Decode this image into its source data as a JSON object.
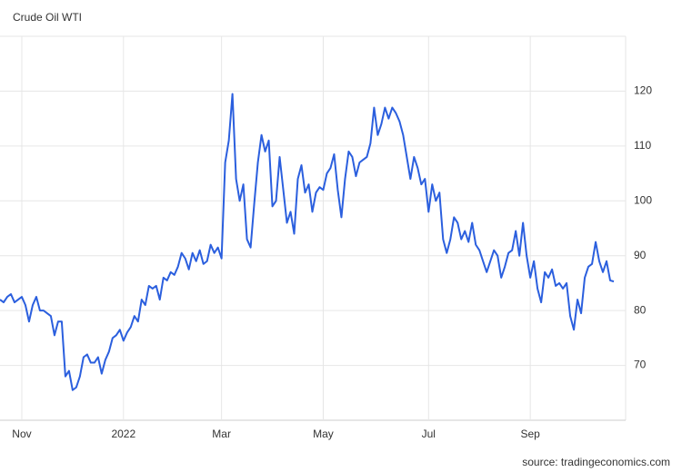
{
  "chart_data": {
    "type": "line",
    "title": "Crude Oil WTI",
    "source": "source: tradingeconomics.com",
    "categories": [
      null,
      null,
      null,
      null,
      null,
      null,
      "Nov",
      null,
      null,
      null,
      null,
      null,
      null,
      null,
      null,
      null,
      null,
      null,
      null,
      null,
      null,
      null,
      null,
      null,
      null,
      null,
      null,
      null,
      null,
      null,
      null,
      null,
      null,
      null,
      "2022",
      null,
      null,
      null,
      null,
      null,
      null,
      null,
      null,
      null,
      null,
      null,
      null,
      null,
      null,
      null,
      null,
      null,
      null,
      null,
      null,
      null,
      null,
      null,
      null,
      null,
      null,
      "Mar",
      null,
      null,
      null,
      null,
      null,
      null,
      null,
      null,
      null,
      null,
      null,
      null,
      null,
      null,
      null,
      null,
      null,
      null,
      null,
      null,
      null,
      null,
      null,
      null,
      null,
      null,
      null,
      "May",
      null,
      null,
      null,
      null,
      null,
      null,
      null,
      null,
      null,
      null,
      null,
      null,
      null,
      null,
      null,
      null,
      null,
      null,
      null,
      null,
      null,
      null,
      null,
      null,
      null,
      null,
      null,
      null,
      "Jul",
      null,
      null,
      null,
      null,
      null,
      null,
      null,
      null,
      null,
      null,
      null,
      null,
      null,
      null,
      null,
      null,
      null,
      null,
      null,
      null,
      null,
      null,
      null,
      null,
      null,
      null,
      null,
      "Sep",
      null,
      null,
      null,
      null,
      null,
      null,
      null,
      null,
      null,
      null,
      null,
      null,
      null,
      null,
      null,
      null,
      null,
      null,
      null,
      null,
      null,
      null,
      null
    ],
    "values": [
      82,
      81.5,
      82.5,
      83,
      81.5,
      82,
      82.5,
      81,
      78,
      81,
      82.5,
      80,
      80,
      79.5,
      79,
      75.5,
      78,
      78,
      68,
      69,
      65.5,
      66,
      68,
      71.5,
      72,
      70.5,
      70.5,
      71.5,
      68.5,
      71,
      72.5,
      75,
      75.5,
      76.5,
      74.5,
      76,
      77,
      79,
      78,
      82,
      81,
      84.5,
      84,
      84.5,
      82,
      86,
      85.5,
      87,
      86.5,
      88,
      90.5,
      89.5,
      87.5,
      90.5,
      89,
      91,
      88.5,
      89,
      92,
      90.5,
      91.5,
      89.5,
      107,
      111,
      119.5,
      104,
      100,
      103,
      93,
      91.5,
      99.5,
      107,
      112,
      109,
      111,
      99,
      100,
      108,
      102,
      96,
      98,
      94,
      104,
      106.5,
      101.5,
      103,
      98,
      101.5,
      102.5,
      102,
      105,
      106,
      108.5,
      102,
      97,
      104,
      109,
      108,
      104.5,
      107,
      107.5,
      108,
      110.5,
      117,
      112,
      114,
      117,
      115,
      117,
      116,
      114.5,
      112,
      108,
      104,
      108,
      106,
      103,
      104,
      98,
      103,
      100,
      101.5,
      93,
      90.5,
      93,
      97,
      96,
      93,
      94.5,
      92.5,
      96,
      92,
      91,
      89,
      87,
      89,
      91,
      90,
      86,
      88,
      90.5,
      91,
      94.5,
      90,
      96,
      90,
      86,
      89,
      84,
      81.5,
      87,
      86,
      87.5,
      84.5,
      85,
      84,
      85,
      79,
      76.5,
      82,
      79.5,
      86,
      88,
      88.5,
      92.5,
      89,
      87,
      89,
      85.5,
      85.3
    ],
    "color": "#2b5fde",
    "ylim": [
      60,
      130
    ],
    "yticks": [
      70,
      80,
      90,
      100,
      110,
      120
    ],
    "grid": true
  }
}
